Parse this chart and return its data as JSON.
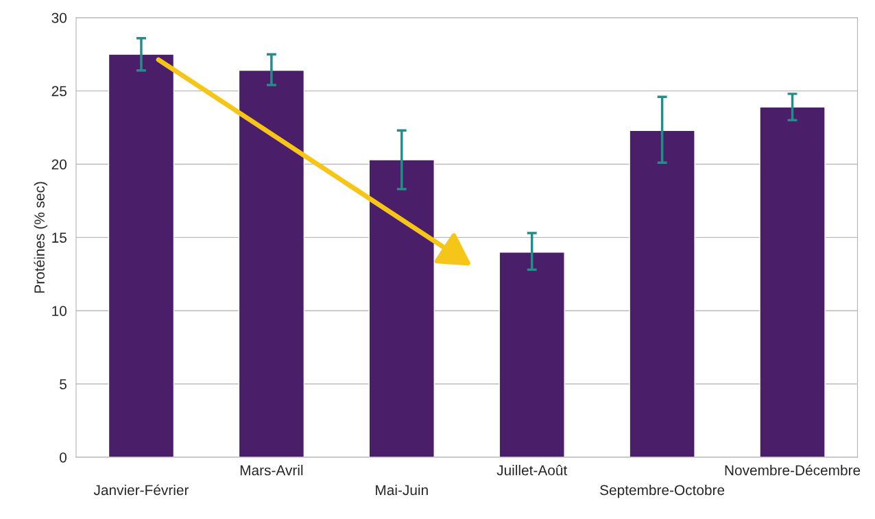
{
  "chart_data": {
    "type": "bar",
    "ylabel": "Protéines (% sec)",
    "categories": [
      "Janvier-Février",
      "Mars-Avril",
      "Mai-Juin",
      "Juillet-Août",
      "Septembre-Octobre",
      "Novembre-Décembre"
    ],
    "values": [
      27.5,
      26.4,
      20.3,
      14.0,
      22.3,
      23.9
    ],
    "errors": [
      [
        26.4,
        28.6
      ],
      [
        25.4,
        27.5
      ],
      [
        18.3,
        22.3
      ],
      [
        12.8,
        15.3
      ],
      [
        20.1,
        24.6
      ],
      [
        23.0,
        24.8
      ]
    ],
    "color": "#4b1e6a",
    "ylim": [
      0,
      30
    ],
    "yticks": [
      0,
      5,
      10,
      15,
      20,
      25,
      30
    ],
    "grid": "y"
  }
}
